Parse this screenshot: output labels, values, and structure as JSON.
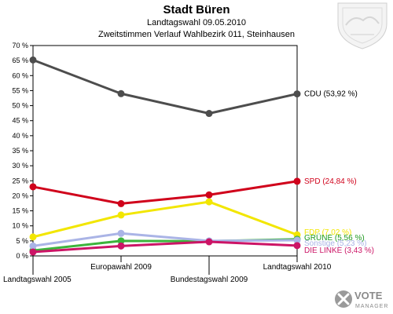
{
  "header": {
    "title": "Stadt Büren",
    "subtitle1": "Landtagswahl 09.05.2010",
    "subtitle2": "Zweitstimmen Verlauf Wahlbezirk 011, Steinhausen"
  },
  "brand": {
    "line1": "VOTE",
    "line2": "MANAGER"
  },
  "chart_data": {
    "type": "line",
    "title": "Stadt Büren",
    "categories": [
      "Landtagswahl 2005",
      "Europawahl 2009",
      "Bundestagswahl 2009",
      "Landtagswahl 2010"
    ],
    "ylim": [
      0,
      70
    ],
    "yticks": [
      0,
      5,
      10,
      15,
      20,
      25,
      30,
      35,
      40,
      45,
      50,
      55,
      60,
      65,
      70
    ],
    "ytick_suffix": " %",
    "grid": false,
    "series": [
      {
        "name": "CDU",
        "label": "CDU (53,92 %)",
        "color": "#4d4d4d",
        "label_color": "#000000",
        "values": [
          65.2,
          54.0,
          47.4,
          53.92
        ]
      },
      {
        "name": "SPD",
        "label": "SPD (24,84 %)",
        "color": "#d0021b",
        "label_color": "#d0021b",
        "values": [
          23.0,
          17.4,
          20.3,
          24.84
        ]
      },
      {
        "name": "FDP",
        "label": "FDP (7,02 %)",
        "color": "#f2e600",
        "label_color": "#f2e600",
        "values": [
          6.3,
          13.6,
          18.0,
          7.02
        ]
      },
      {
        "name": "GRÜNE",
        "label": "GRÜNE (5,56 %)",
        "color": "#3cb43c",
        "label_color": "#1e9a1e",
        "values": [
          1.8,
          5.0,
          4.9,
          5.56
        ]
      },
      {
        "name": "Sonstige",
        "label": "Sonstige (5,23 %)",
        "color": "#aab4e6",
        "label_color": "#aab4e6",
        "values": [
          3.3,
          7.5,
          5.0,
          5.23
        ]
      },
      {
        "name": "DIE LINKE",
        "label": "DIE LINKE (3,43 %)",
        "color": "#cc1466",
        "label_color": "#cc1466",
        "values": [
          1.3,
          3.3,
          4.7,
          3.43
        ]
      }
    ]
  }
}
